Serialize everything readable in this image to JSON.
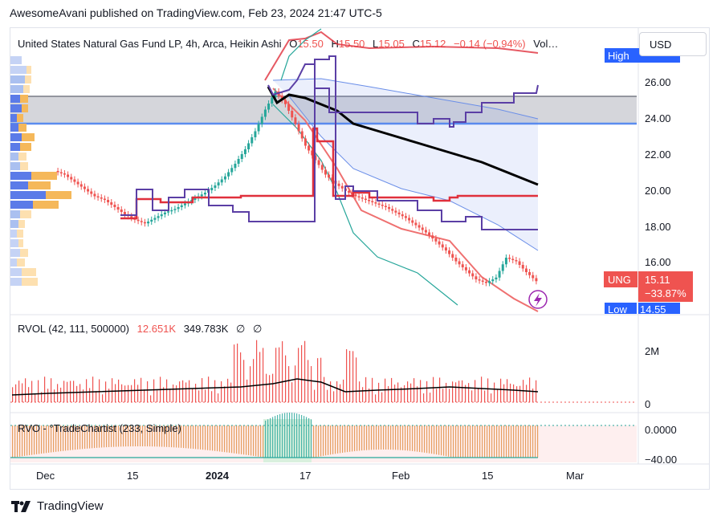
{
  "publisher_line": "AwesomeAvani published on TradingView.com, Feb 23, 2024 21:47 UTC-5",
  "header": {
    "symbol_title": "United States Natural Gas Fund LP, 4h, Arca, Heikin Ashi",
    "o_label": "O",
    "o_value": "15.50",
    "h_label": "H",
    "h_value": "15.50",
    "l_label": "L",
    "l_value": "15.05",
    "c_label": "C",
    "c_value": "15.12",
    "change": "−0.14 (−0.94%)",
    "vol_label": "Vol…"
  },
  "currency": "USD",
  "badges": {
    "high_label": "High",
    "low_label": "Low",
    "low_value": "14.55",
    "ticker": "UNG",
    "price": "15.11",
    "pct": "−33.87%"
  },
  "rvol_panel": {
    "title": "RVOL (42, 111, 500000)",
    "v1": "12.651K",
    "v2": "349.783K",
    "v3": "∅",
    "v4": "∅",
    "axis_2m": "2M",
    "axis_0": "0"
  },
  "rvo_panel": {
    "title": "RVO - °TradeChartist (233, Simple)",
    "axis_0": "0.0000",
    "axis_neg40": "−40.00"
  },
  "x_axis": [
    "Dec",
    "15",
    "2024",
    "17",
    "Feb",
    "15",
    "Mar"
  ],
  "brand": "TradingView",
  "colors": {
    "up": "#26a69a",
    "down": "#ef5350",
    "black_line": "#000000",
    "purple": "#5b3fa5",
    "red_line": "#e0303c",
    "blue_band": "#6a8ee8",
    "zone": "#b2b5be",
    "orange": "#f5a623"
  },
  "chart_data": {
    "type": "line",
    "title": "United States Natural Gas Fund LP, 4h, Arca, Heikin Ashi",
    "y_ticks": [
      26.0,
      24.0,
      22.0,
      20.0,
      18.0,
      16.0
    ],
    "ylim": [
      14.0,
      28.0
    ],
    "x_ticks": [
      "Dec",
      "15",
      "2024",
      "17",
      "Feb",
      "15",
      "Mar"
    ],
    "series": [
      {
        "name": "UNG",
        "values": [
          21.2,
          21.0,
          20.6,
          20.2,
          19.8,
          19.6,
          19.2,
          18.8,
          18.5,
          18.3,
          18.6,
          18.9,
          19.1,
          19.4,
          19.7,
          20.0,
          20.4,
          20.9,
          21.6,
          22.4,
          23.4,
          24.6,
          25.6,
          24.9,
          23.8,
          22.6,
          21.8,
          21.0,
          20.5,
          20.1,
          19.8,
          19.6,
          19.4,
          19.2,
          18.9,
          18.6,
          18.2,
          17.8,
          17.3,
          16.8,
          16.2,
          15.7,
          15.2,
          15.0,
          15.3,
          16.4,
          16.2,
          15.6,
          15.1
        ]
      }
    ]
  }
}
